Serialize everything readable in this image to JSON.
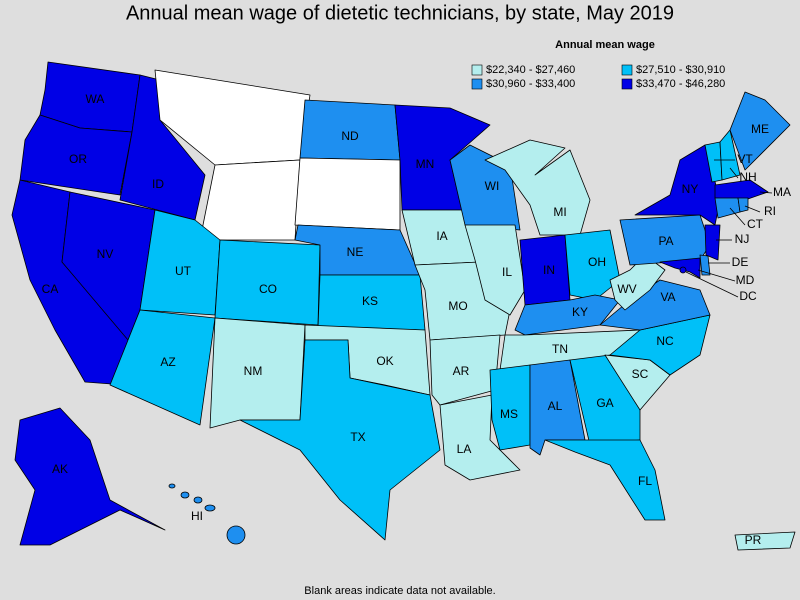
{
  "title": "Annual mean wage of dietetic technicians, by state, May 2019",
  "legend": {
    "title": "Annual mean wage",
    "items": [
      {
        "label": "$22,340 - $27,460",
        "color": "#b4eeee"
      },
      {
        "label": "$27,510 - $30,910",
        "color": "#00c0f8"
      },
      {
        "label": "$30,960 - $33,400",
        "color": "#1e8ff0"
      },
      {
        "label": "$33,470 - $46,280",
        "color": "#0000e6"
      }
    ]
  },
  "states": [
    {
      "abbr": "WA",
      "color": "#0000e6"
    },
    {
      "abbr": "OR",
      "color": "#0000e6"
    },
    {
      "abbr": "CA",
      "color": "#0000e6"
    },
    {
      "abbr": "NV",
      "color": "#0000e6"
    },
    {
      "abbr": "ID",
      "color": "#0000e6"
    },
    {
      "color": "#ffffff"
    },
    {
      "color": "#ffffff"
    },
    {
      "abbr": "UT",
      "color": "#00c0f8"
    },
    {
      "abbr": "CO",
      "color": "#00c0f8"
    },
    {
      "abbr": "AZ",
      "color": "#00c0f8"
    },
    {
      "abbr": "NM",
      "color": "#b4eeee"
    },
    {
      "abbr": "ND",
      "color": "#1e8ff0"
    },
    {
      "color": "#ffffff"
    },
    {
      "abbr": "NE",
      "color": "#1e8ff0"
    },
    {
      "abbr": "KS",
      "color": "#00c0f8"
    },
    {
      "abbr": "OK",
      "color": "#b4eeee"
    },
    {
      "abbr": "TX",
      "color": "#00c0f8"
    },
    {
      "abbr": "MN",
      "color": "#0000e6"
    },
    {
      "abbr": "IA",
      "color": "#b4eeee"
    },
    {
      "abbr": "MO",
      "color": "#b4eeee"
    },
    {
      "abbr": "AR",
      "color": "#b4eeee"
    },
    {
      "abbr": "LA",
      "color": "#b4eeee"
    },
    {
      "abbr": "WI",
      "color": "#1e8ff0"
    },
    {
      "abbr": "IL",
      "color": "#b4eeee"
    },
    {
      "abbr": "IN",
      "color": "#0000e6"
    },
    {
      "abbr": "MI",
      "color": "#b4eeee"
    },
    {
      "abbr": "OH",
      "color": "#00c0f8"
    },
    {
      "abbr": "KY",
      "color": "#1e8ff0"
    },
    {
      "abbr": "TN",
      "color": "#b4eeee"
    },
    {
      "abbr": "MS",
      "color": "#00c0f8"
    },
    {
      "abbr": "AL",
      "color": "#1e8ff0"
    },
    {
      "abbr": "GA",
      "color": "#00c0f8"
    },
    {
      "abbr": "FL",
      "color": "#00c0f8"
    },
    {
      "abbr": "SC",
      "color": "#b4eeee"
    },
    {
      "abbr": "NC",
      "color": "#00c0f8"
    },
    {
      "abbr": "VA",
      "color": "#1e8ff0"
    },
    {
      "abbr": "WV",
      "color": "#b4eeee"
    },
    {
      "abbr": "PA",
      "color": "#1e8ff0"
    },
    {
      "abbr": "NY",
      "color": "#0000e6"
    },
    {
      "abbr": "VT",
      "color": "#00c0f8"
    },
    {
      "abbr": "NH",
      "color": "#00c0f8"
    },
    {
      "abbr": "ME",
      "color": "#1e8ff0"
    },
    {
      "abbr": "MA",
      "color": "#0000e6"
    },
    {
      "abbr": "CT",
      "color": "#1e8ff0"
    },
    {
      "abbr": "RI",
      "color": "#1e8ff0"
    },
    {
      "abbr": "NJ",
      "color": "#0000e6"
    },
    {
      "abbr": "DE",
      "color": "#1e8ff0"
    },
    {
      "abbr": "MD",
      "color": "#0000e6"
    },
    {
      "abbr": "DC",
      "color": "#0000e6"
    },
    {
      "abbr": "AK",
      "color": "#0000e6"
    },
    {
      "abbr": "HI",
      "color": "#1e8ff0"
    },
    {
      "abbr": "PR",
      "color": "#b4eeee"
    }
  ],
  "note": "Blank areas indicate data not available."
}
